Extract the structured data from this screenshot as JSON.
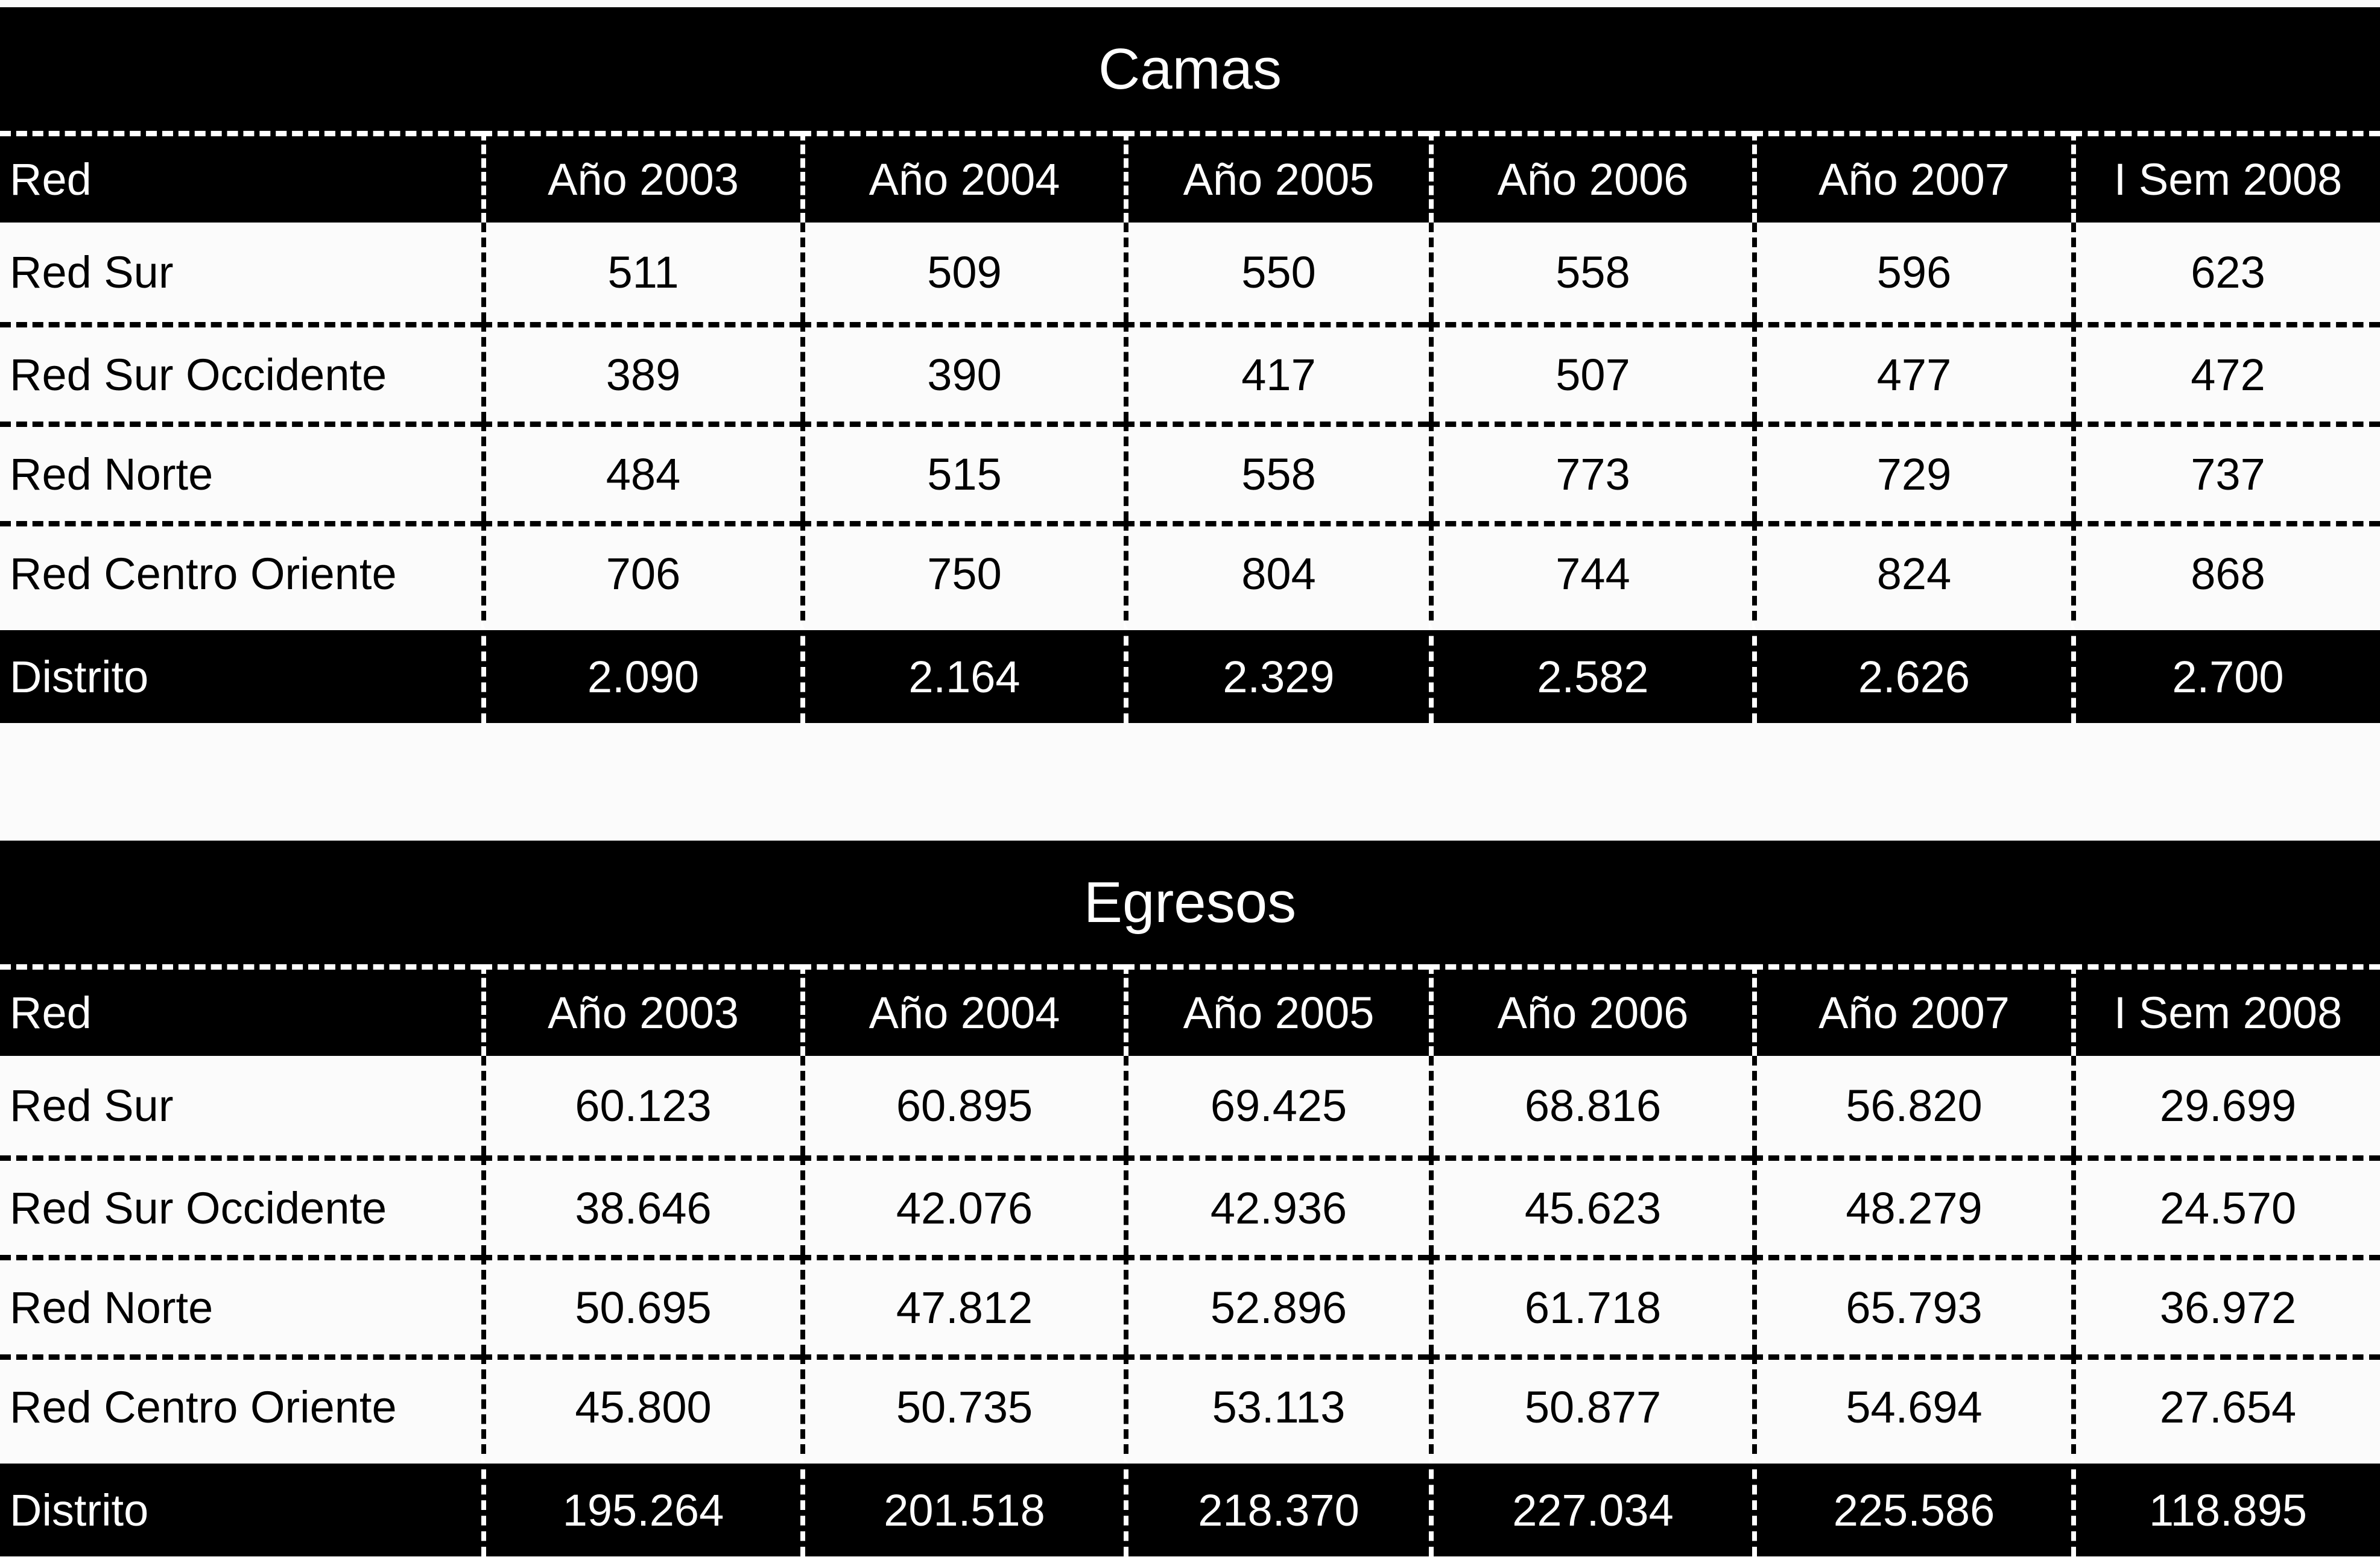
{
  "colors": {
    "table_black": "#000000",
    "text_on_black": "#ffffff",
    "text_on_white": "#000000",
    "background": "#fbfbfb"
  },
  "tables": [
    {
      "title": "Camas",
      "columns": [
        "Red",
        "Año 2003",
        "Año 2004",
        "Año 2005",
        "Año 2006",
        "Año 2007",
        "I Sem 2008"
      ],
      "rows": [
        {
          "label": "Red Sur",
          "values": [
            "511",
            "509",
            "550",
            "558",
            "596",
            "623"
          ]
        },
        {
          "label": "Red Sur Occidente",
          "values": [
            "389",
            "390",
            "417",
            "507",
            "477",
            "472"
          ]
        },
        {
          "label": "Red Norte",
          "values": [
            "484",
            "515",
            "558",
            "773",
            "729",
            "737"
          ]
        },
        {
          "label": "Red Centro Oriente",
          "values": [
            "706",
            "750",
            "804",
            "744",
            "824",
            "868"
          ]
        }
      ],
      "total_row": {
        "label": "Distrito",
        "values": [
          "2.090",
          "2.164",
          "2.329",
          "2.582",
          "2.626",
          "2.700"
        ]
      }
    },
    {
      "title": "Egresos",
      "columns": [
        "Red",
        "Año 2003",
        "Año 2004",
        "Año 2005",
        "Año 2006",
        "Año 2007",
        "I Sem 2008"
      ],
      "rows": [
        {
          "label": "Red Sur",
          "values": [
            "60.123",
            "60.895",
            "69.425",
            "68.816",
            "56.820",
            "29.699"
          ]
        },
        {
          "label": "Red Sur Occidente",
          "values": [
            "38.646",
            "42.076",
            "42.936",
            "45.623",
            "48.279",
            "24.570"
          ]
        },
        {
          "label": "Red Norte",
          "values": [
            "50.695",
            "47.812",
            "52.896",
            "61.718",
            "65.793",
            "36.972"
          ]
        },
        {
          "label": "Red Centro Oriente",
          "values": [
            "45.800",
            "50.735",
            "53.113",
            "50.877",
            "54.694",
            "27.654"
          ]
        }
      ],
      "total_row": {
        "label": "Distrito",
        "values": [
          "195.264",
          "201.518",
          "218.370",
          "227.034",
          "225.586",
          "118.895"
        ]
      }
    }
  ],
  "chart_data": [
    {
      "type": "table",
      "title": "Camas",
      "columns": [
        "Red",
        "Año 2003",
        "Año 2004",
        "Año 2005",
        "Año 2006",
        "Año 2007",
        "I Sem 2008"
      ],
      "rows": [
        [
          "Red Sur",
          511,
          509,
          550,
          558,
          596,
          623
        ],
        [
          "Red Sur Occidente",
          389,
          390,
          417,
          507,
          477,
          472
        ],
        [
          "Red Norte",
          484,
          515,
          558,
          773,
          729,
          737
        ],
        [
          "Red Centro Oriente",
          706,
          750,
          804,
          744,
          824,
          868
        ],
        [
          "Distrito",
          2090,
          2164,
          2329,
          2582,
          2626,
          2700
        ]
      ]
    },
    {
      "type": "table",
      "title": "Egresos",
      "columns": [
        "Red",
        "Año 2003",
        "Año 2004",
        "Año 2005",
        "Año 2006",
        "Año 2007",
        "I Sem 2008"
      ],
      "rows": [
        [
          "Red Sur",
          60123,
          60895,
          69425,
          68816,
          56820,
          29699
        ],
        [
          "Red Sur Occidente",
          38646,
          42076,
          42936,
          45623,
          48279,
          24570
        ],
        [
          "Red Norte",
          50695,
          47812,
          52896,
          61718,
          65793,
          36972
        ],
        [
          "Red Centro Oriente",
          45800,
          50735,
          53113,
          50877,
          54694,
          27654
        ],
        [
          "Distrito",
          195264,
          201518,
          218370,
          227034,
          225586,
          118895
        ]
      ]
    }
  ]
}
